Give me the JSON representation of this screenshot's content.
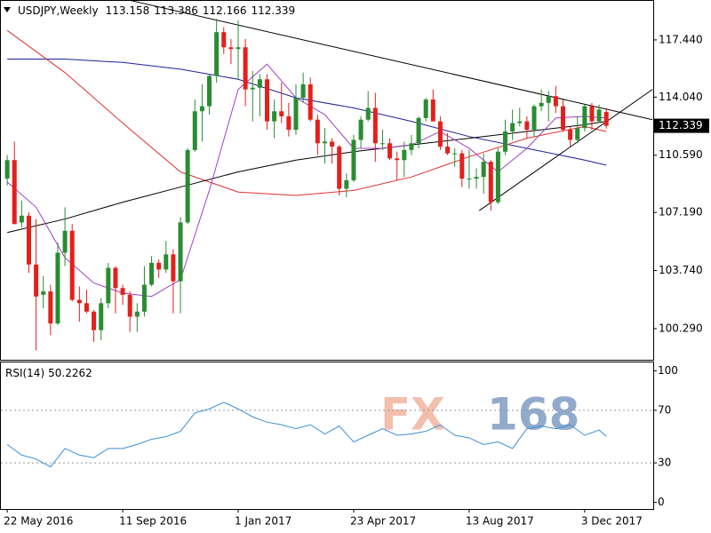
{
  "chart_data": {
    "type": "candlestick",
    "symbol": "USDJPY,Weekly",
    "watermark": [
      "FX",
      "168"
    ],
    "categories": [
      "22 May 2016",
      null,
      null,
      null,
      null,
      null,
      null,
      null,
      null,
      null,
      null,
      null,
      null,
      null,
      null,
      null,
      "11 Sep 2016",
      null,
      null,
      null,
      null,
      null,
      null,
      null,
      null,
      null,
      null,
      null,
      null,
      null,
      null,
      null,
      "1 Jan 2017",
      null,
      null,
      null,
      null,
      null,
      null,
      null,
      null,
      null,
      null,
      null,
      null,
      null,
      null,
      null,
      "23 Apr 2017",
      null,
      null,
      null,
      null,
      null,
      null,
      null,
      null,
      null,
      null,
      null,
      null,
      null,
      null,
      null,
      "13 Aug 2017",
      null,
      null,
      null,
      null,
      null,
      null,
      null,
      null,
      null,
      null,
      null,
      null,
      null,
      null,
      null,
      "3 Dec 2017",
      null,
      null,
      null
    ],
    "xlim": [
      -1,
      89.5
    ],
    "open": [
      109.2,
      110.3,
      106.6,
      107.0,
      104.1,
      102.3,
      102.5,
      100.6,
      104.8,
      106.1,
      102.0,
      101.8,
      101.3,
      100.2,
      101.8,
      103.9,
      102.7,
      102.3,
      101.0,
      101.3,
      102.9,
      104.2,
      103.8,
      104.7,
      103.1,
      106.6,
      110.9,
      113.2,
      113.5,
      115.3,
      117.9,
      117.0,
      116.9,
      117.0,
      114.5,
      114.6,
      115.1,
      112.6,
      113.2,
      112.9,
      112.1,
      114.0,
      114.8,
      112.7,
      111.3,
      111.4,
      111.1,
      108.6,
      109.1,
      111.5,
      112.7,
      113.4,
      111.3,
      111.3,
      110.4,
      110.3,
      110.9,
      111.3,
      112.8,
      113.9,
      112.6,
      111.1,
      110.7,
      110.7,
      109.2,
      109.2,
      109.3,
      110.2,
      107.8,
      110.8,
      112.0,
      112.5,
      112.6,
      112.1,
      113.5,
      113.7,
      114.1,
      113.5,
      112.1,
      111.5,
      112.2,
      113.5,
      112.6,
      113.158
    ],
    "high": [
      110.6,
      111.4,
      107.9,
      107.2,
      106.8,
      103.4,
      102.9,
      105.4,
      107.5,
      106.5,
      102.8,
      102.6,
      101.4,
      102.1,
      104.2,
      104.0,
      102.9,
      102.5,
      101.8,
      104.0,
      104.6,
      104.4,
      105.5,
      105.0,
      106.9,
      111.0,
      113.9,
      114.8,
      115.4,
      118.7,
      118.2,
      117.5,
      118.6,
      117.5,
      115.6,
      115.4,
      115.4,
      113.9,
      114.9,
      113.7,
      114.8,
      115.5,
      115.2,
      113.0,
      112.2,
      111.6,
      111.2,
      109.5,
      111.8,
      112.9,
      114.4,
      114.3,
      112.1,
      111.6,
      110.8,
      111.4,
      111.8,
      112.9,
      114.0,
      114.5,
      112.9,
      111.9,
      111.0,
      110.9,
      110.9,
      109.8,
      110.7,
      110.3,
      111.0,
      112.7,
      113.3,
      113.4,
      112.9,
      113.6,
      114.5,
      114.4,
      114.7,
      113.9,
      112.3,
      112.9,
      113.6,
      113.7,
      113.6,
      113.386
    ],
    "low": [
      108.8,
      106.5,
      106.3,
      103.6,
      99.0,
      101.5,
      99.9,
      100.5,
      104.0,
      101.9,
      100.7,
      101.2,
      99.5,
      99.6,
      101.5,
      101.2,
      101.7,
      100.1,
      100.1,
      101.0,
      102.8,
      103.3,
      103.6,
      101.2,
      101.2,
      106.5,
      110.8,
      111.4,
      113.0,
      114.9,
      116.6,
      116.0,
      115.1,
      113.5,
      112.6,
      112.9,
      112.1,
      111.6,
      112.5,
      111.7,
      111.8,
      113.7,
      112.6,
      110.6,
      110.1,
      110.1,
      108.2,
      108.1,
      109.0,
      111.0,
      112.6,
      110.2,
      110.9,
      110.3,
      109.1,
      109.3,
      110.6,
      111.0,
      112.6,
      112.6,
      110.9,
      110.6,
      109.9,
      108.7,
      108.6,
      108.6,
      108.3,
      107.3,
      107.7,
      110.6,
      111.5,
      112.3,
      111.6,
      111.7,
      113.2,
      112.6,
      113.1,
      112.0,
      111.1,
      111.3,
      112.0,
      112.1,
      112.5,
      112.166
    ],
    "close": [
      110.3,
      106.5,
      107.0,
      104.1,
      102.2,
      102.5,
      100.6,
      104.8,
      106.1,
      102.0,
      101.8,
      101.3,
      100.2,
      101.8,
      103.9,
      102.7,
      102.3,
      101.0,
      101.3,
      102.9,
      104.2,
      103.8,
      104.7,
      103.1,
      106.6,
      110.9,
      113.2,
      113.5,
      115.3,
      117.9,
      117.0,
      116.9,
      117.0,
      114.5,
      114.6,
      115.1,
      112.6,
      113.2,
      112.9,
      112.1,
      114.0,
      114.8,
      112.7,
      111.3,
      111.4,
      111.1,
      108.6,
      109.1,
      111.5,
      112.7,
      113.4,
      111.3,
      111.3,
      110.4,
      110.3,
      110.9,
      111.3,
      112.8,
      113.9,
      112.6,
      111.1,
      110.7,
      110.7,
      109.2,
      109.2,
      109.3,
      110.2,
      107.8,
      110.8,
      112.0,
      112.5,
      112.6,
      112.1,
      113.5,
      113.7,
      114.1,
      113.5,
      112.1,
      111.5,
      112.2,
      113.5,
      112.6,
      113.3,
      112.339
    ],
    "up_color": "#2a8c32",
    "down_color": "#e3201b",
    "ylim": [
      98.44,
      119.81
    ],
    "yticks": [
      {
        "value": 100.29,
        "label": "100.290"
      },
      {
        "value": 103.74,
        "label": "103.740"
      },
      {
        "value": 107.19,
        "label": "107.190"
      },
      {
        "value": 110.59,
        "label": "110.590"
      },
      {
        "value": 114.04,
        "label": "114.040"
      },
      {
        "value": 117.44,
        "label": "117.440"
      }
    ],
    "lines": [
      {
        "color": "#1f1f9a",
        "x": [
          0,
          8,
          16,
          24,
          32,
          40,
          48,
          56,
          64,
          72,
          80,
          83
        ],
        "values": [
          116.3,
          116.3,
          116.1,
          115.7,
          115.1,
          114.0,
          113.4,
          112.6,
          111.7,
          111.0,
          110.3,
          110.0
        ]
      },
      {
        "color": "#e03030",
        "x": [
          0,
          8,
          16,
          24,
          32,
          40,
          48,
          56,
          64,
          72,
          80,
          83
        ],
        "values": [
          118.0,
          115.5,
          112.5,
          109.6,
          108.4,
          108.2,
          108.5,
          109.3,
          110.5,
          111.6,
          112.3,
          112.0
        ]
      },
      {
        "color": "#000000",
        "x": [
          0,
          8,
          16,
          24,
          32,
          40,
          48,
          56,
          64,
          72,
          80,
          83
        ],
        "values": [
          106.0,
          106.8,
          107.8,
          108.7,
          109.6,
          110.3,
          110.8,
          111.2,
          111.6,
          112.0,
          112.4,
          112.6
        ]
      },
      {
        "color": "#a040c8",
        "x": [
          0,
          4,
          8,
          12,
          16,
          20,
          24,
          28,
          32,
          36,
          40,
          44,
          48,
          52,
          56,
          60,
          64,
          68,
          72,
          76,
          80,
          83
        ],
        "values": [
          109.0,
          107.5,
          104.5,
          103.0,
          102.4,
          102.2,
          103.2,
          108.5,
          114.5,
          116.0,
          114.0,
          113.0,
          111.0,
          111.0,
          111.2,
          112.0,
          111.0,
          109.6,
          111.0,
          112.8,
          112.9,
          112.8
        ]
      }
    ],
    "trendlines": [
      {
        "color": "#000000",
        "x": [
          16.9,
          89.4
        ],
        "values": [
          119.8,
          112.7
        ]
      },
      {
        "color": "#000000",
        "x": [
          65.4,
          89.4
        ],
        "values": [
          107.3,
          114.5
        ]
      }
    ],
    "rsi": {
      "title": "RSI(14)",
      "color": "#3c8fd8",
      "x": [
        0,
        2,
        4,
        6,
        8,
        10,
        12,
        14,
        16,
        18,
        20,
        22,
        24,
        26,
        28,
        30,
        32,
        34,
        36,
        38,
        40,
        42,
        44,
        46,
        48,
        50,
        52,
        54,
        56,
        58,
        60,
        62,
        64,
        66,
        68,
        70,
        72,
        74,
        76,
        78,
        80,
        82,
        83
      ],
      "values": [
        44,
        36,
        33,
        27,
        41,
        36,
        34,
        41,
        41,
        44,
        48,
        50,
        54,
        68,
        71,
        76,
        71,
        65,
        61,
        59,
        56,
        59,
        52,
        58,
        46,
        51,
        56,
        51,
        52,
        54,
        59,
        51,
        49,
        44,
        46,
        41,
        56,
        58,
        56,
        59,
        51,
        55,
        50.2262
      ],
      "ylim": [
        -5,
        107
      ],
      "yticks": [
        0,
        30,
        70,
        100
      ],
      "levels": [
        30,
        70
      ]
    }
  }
}
